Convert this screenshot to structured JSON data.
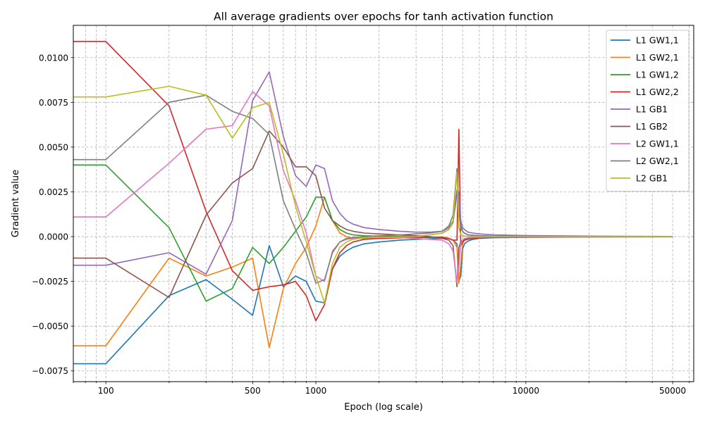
{
  "chart_data": {
    "type": "line",
    "title": "All average gradients over epochs for tanh activation function",
    "xlabel": "Epoch (log scale)",
    "ylabel": "Gradient value",
    "xscale": "log",
    "xlim": [
      70,
      63000
    ],
    "ylim": [
      -0.0081,
      0.0118
    ],
    "grid": true,
    "legend_position": "upper right",
    "x_major_ticks": [
      100,
      500,
      1000,
      10000,
      50000
    ],
    "x_tick_labels": [
      "100",
      "500",
      "1000",
      "10000",
      "50000"
    ],
    "x_minor_ticks": [
      70,
      80,
      90,
      200,
      300,
      400,
      600,
      700,
      800,
      900,
      2000,
      3000,
      4000,
      5000,
      6000,
      7000,
      8000,
      9000,
      20000,
      30000,
      40000,
      60000
    ],
    "y_ticks": [
      -0.0075,
      -0.005,
      -0.0025,
      0.0,
      0.0025,
      0.005,
      0.0075,
      0.01
    ],
    "y_tick_labels": [
      "−0.0075",
      "−0.0050",
      "−0.0025",
      "0.0000",
      "0.0025",
      "0.0050",
      "0.0075",
      "0.0100"
    ],
    "series": [
      {
        "name": "L1 GW1,1",
        "color": "#1f77b4",
        "x": [
          70,
          100,
          200,
          300,
          400,
          500,
          600,
          700,
          800,
          900,
          1000,
          1100,
          1200,
          1300,
          1400,
          1500,
          1700,
          2000,
          2500,
          3000,
          3500,
          4000,
          4300,
          4500,
          4700,
          4800,
          4900,
          5000,
          5100,
          5300,
          5600,
          6000,
          7000,
          10000,
          20000,
          50000
        ],
        "y": [
          -0.0071,
          -0.0071,
          -0.0033,
          -0.0024,
          -0.0035,
          -0.0044,
          -0.0005,
          -0.0028,
          -0.0022,
          -0.0025,
          -0.0036,
          -0.0037,
          -0.0018,
          -0.0011,
          -0.0008,
          -0.0006,
          -0.0004,
          -0.0003,
          -0.0002,
          -0.00015,
          -0.00012,
          -0.0001,
          -0.0001,
          -0.0002,
          -0.0004,
          -0.0025,
          -0.0022,
          -0.0007,
          -0.0004,
          -0.00025,
          -0.00015,
          -0.0001,
          -6e-05,
          -4e-05,
          -2e-05,
          -1e-05
        ]
      },
      {
        "name": "L1 GW2,1",
        "color": "#ff7f0e",
        "x": [
          70,
          100,
          200,
          300,
          400,
          500,
          600,
          700,
          800,
          900,
          1000,
          1100,
          1200,
          1300,
          1400,
          1500,
          1700,
          2000,
          2500,
          3000,
          3500,
          4000,
          4300,
          4500,
          4700,
          4800,
          4900,
          5000,
          5100,
          5300,
          5600,
          6000,
          7000,
          10000,
          20000,
          50000
        ],
        "y": [
          -0.0061,
          -0.0061,
          -0.0012,
          -0.0022,
          -0.0017,
          -0.0012,
          -0.0062,
          -0.0029,
          -0.0015,
          -0.0006,
          0.0006,
          0.0022,
          0.0009,
          0.0002,
          0.0,
          -0.0001,
          -0.0001,
          -0.0001,
          -8e-05,
          -5e-05,
          -3e-05,
          -2e-05,
          -0.0001,
          -0.0002,
          -0.0006,
          -0.0026,
          -0.0015,
          -0.0004,
          -0.0002,
          -0.0001,
          -7e-05,
          -5e-05,
          -3e-05,
          -2e-05,
          -1e-05,
          0.0
        ]
      },
      {
        "name": "L1 GW1,2",
        "color": "#2ca02c",
        "x": [
          70,
          100,
          200,
          300,
          400,
          500,
          600,
          700,
          800,
          900,
          1000,
          1100,
          1200,
          1300,
          1400,
          1500,
          1700,
          2000,
          2500,
          3000,
          3500,
          4000,
          4300,
          4500,
          4700,
          4800,
          4900,
          5000,
          5100,
          5300,
          5600,
          6000,
          7000,
          10000,
          20000,
          50000
        ],
        "y": [
          0.004,
          0.004,
          0.0005,
          -0.0036,
          -0.0029,
          -0.0006,
          -0.0015,
          -0.0006,
          0.0003,
          0.0011,
          0.0022,
          0.0022,
          0.0009,
          0.0004,
          0.0002,
          0.0001,
          5e-05,
          3e-05,
          2e-05,
          2e-05,
          0.0001,
          0.0002,
          0.0004,
          0.0008,
          0.0024,
          0.002,
          0.0006,
          0.0003,
          0.0002,
          0.0001,
          8e-05,
          5e-05,
          3e-05,
          2e-05,
          1e-05,
          0.0
        ]
      },
      {
        "name": "L1 GW2,2",
        "color": "#d62728",
        "x": [
          70,
          100,
          200,
          300,
          400,
          500,
          600,
          700,
          800,
          900,
          1000,
          1100,
          1200,
          1300,
          1400,
          1500,
          1700,
          2000,
          2500,
          3000,
          3500,
          4000,
          4300,
          4500,
          4700,
          4800,
          4900,
          5000,
          5100,
          5300,
          5600,
          6000,
          7000,
          10000,
          20000,
          50000
        ],
        "y": [
          0.0109,
          0.0109,
          0.0073,
          0.0014,
          -0.0019,
          -0.003,
          -0.0028,
          -0.0027,
          -0.0025,
          -0.0033,
          -0.0047,
          -0.0038,
          -0.0018,
          -0.0009,
          -0.0005,
          -0.0003,
          -0.00015,
          -0.0001,
          -7e-05,
          -5e-05,
          -4e-05,
          -4e-05,
          -0.0001,
          -0.0002,
          -0.0002,
          0.006,
          -0.0005,
          -0.0003,
          -0.0002,
          -0.00015,
          -0.0001,
          -7e-05,
          -4e-05,
          -2e-05,
          -1e-05,
          0.0
        ]
      },
      {
        "name": "L1 GB1",
        "color": "#9467bd",
        "x": [
          70,
          100,
          200,
          300,
          400,
          500,
          600,
          700,
          800,
          900,
          1000,
          1100,
          1200,
          1300,
          1400,
          1500,
          1700,
          2000,
          2500,
          3000,
          3500,
          4000,
          4300,
          4500,
          4700,
          4800,
          4900,
          5000,
          5100,
          5300,
          5600,
          6000,
          7000,
          10000,
          20000,
          50000
        ],
        "y": [
          -0.0016,
          -0.0016,
          -0.0009,
          -0.0021,
          0.0009,
          0.0076,
          0.0092,
          0.0056,
          0.0034,
          0.0028,
          0.004,
          0.0038,
          0.002,
          0.0013,
          0.0009,
          0.0007,
          0.0005,
          0.0004,
          0.0003,
          0.00025,
          0.00025,
          0.0003,
          0.0005,
          0.0009,
          0.0026,
          0.0025,
          0.0009,
          0.0005,
          0.0004,
          0.00025,
          0.0002,
          0.00015,
          0.0001,
          6e-05,
          3e-05,
          1e-05
        ]
      },
      {
        "name": "L1 GB2",
        "color": "#8c564b",
        "x": [
          70,
          100,
          200,
          300,
          400,
          500,
          600,
          700,
          800,
          900,
          1000,
          1100,
          1200,
          1300,
          1400,
          1500,
          1700,
          2000,
          2500,
          3000,
          3500,
          4000,
          4300,
          4500,
          4700,
          4800,
          4900,
          5000,
          5100,
          5300,
          5600,
          6000,
          7000,
          10000,
          20000,
          50000
        ],
        "y": [
          -0.0012,
          -0.0012,
          -0.0034,
          0.0012,
          0.003,
          0.0038,
          0.0059,
          0.005,
          0.0039,
          0.0039,
          0.0034,
          0.0016,
          0.0009,
          0.0006,
          0.0004,
          0.0003,
          0.0002,
          0.00015,
          0.0001,
          5e-05,
          0.0,
          -0.0001,
          -0.0002,
          -0.0005,
          -0.0028,
          -0.0006,
          -0.0003,
          -0.0002,
          -0.00015,
          -0.0001,
          -7e-05,
          -5e-05,
          -3e-05,
          -2e-05,
          -1e-05,
          0.0
        ]
      },
      {
        "name": "L2 GW1,1",
        "color": "#e377c2",
        "x": [
          70,
          100,
          200,
          300,
          400,
          500,
          600,
          700,
          800,
          900,
          1000,
          1100,
          1200,
          1300,
          1400,
          1500,
          1700,
          2000,
          2500,
          3000,
          3500,
          4000,
          4300,
          4500,
          4700,
          4800,
          4900,
          5000,
          5100,
          5300,
          5600,
          6000,
          7000,
          10000,
          20000,
          50000
        ],
        "y": [
          0.0011,
          0.0011,
          0.0041,
          0.006,
          0.0062,
          0.0081,
          0.0073,
          0.0037,
          0.002,
          0.0002,
          -0.0022,
          -0.0025,
          -0.0008,
          -0.0003,
          -0.00015,
          -0.0001,
          -5e-05,
          -4e-05,
          -6e-05,
          -0.0001,
          -0.00015,
          -0.0002,
          -0.0004,
          -0.0008,
          -0.0026,
          -0.0016,
          -0.0004,
          -0.0002,
          -0.0001,
          -6e-05,
          -4e-05,
          -3e-05,
          -2e-05,
          -1e-05,
          0.0,
          0.0
        ]
      },
      {
        "name": "L2 GW2,1",
        "color": "#7f7f7f",
        "x": [
          70,
          100,
          200,
          300,
          400,
          500,
          600,
          700,
          800,
          900,
          1000,
          1100,
          1200,
          1300,
          1400,
          1500,
          1700,
          2000,
          2500,
          3000,
          3500,
          4000,
          4300,
          4500,
          4700,
          4800,
          4900,
          5000,
          5100,
          5300,
          5600,
          6000,
          7000,
          10000,
          20000,
          50000
        ],
        "y": [
          0.0043,
          0.0043,
          0.0075,
          0.0079,
          0.007,
          0.0066,
          0.0057,
          0.002,
          0.0004,
          -0.0009,
          -0.0026,
          -0.0024,
          -0.0009,
          -0.0003,
          -0.0001,
          -5e-05,
          0.0,
          5e-05,
          0.0001,
          0.00015,
          0.0002,
          0.0003,
          0.0006,
          0.0012,
          0.0038,
          0.0015,
          0.0005,
          0.0003,
          0.0002,
          0.0001,
          7e-05,
          5e-05,
          3e-05,
          2e-05,
          1e-05,
          0.0
        ]
      },
      {
        "name": "L2 GB1",
        "color": "#bcbd22",
        "x": [
          70,
          100,
          200,
          300,
          400,
          500,
          600,
          700,
          800,
          900,
          1000,
          1100,
          1200,
          1300,
          1400,
          1500,
          1700,
          2000,
          2500,
          3000,
          3500,
          4000,
          4300,
          4500,
          4700,
          4800,
          4900,
          5000,
          5100,
          5300,
          5600,
          6000,
          7000,
          10000,
          20000,
          50000
        ],
        "y": [
          0.0078,
          0.0078,
          0.0084,
          0.0079,
          0.0055,
          0.0072,
          0.0075,
          0.0046,
          0.0017,
          -0.0003,
          -0.0022,
          -0.0037,
          -0.0015,
          -0.0006,
          -0.0003,
          -0.00015,
          -8e-05,
          -4e-05,
          -2e-05,
          0.0,
          0.0001,
          0.0002,
          0.0004,
          0.0009,
          0.0036,
          0.0005,
          0.0001,
          5e-05,
          3e-05,
          2e-05,
          1e-05,
          0.0,
          0.0,
          0.0,
          0.0,
          0.0
        ]
      }
    ]
  }
}
